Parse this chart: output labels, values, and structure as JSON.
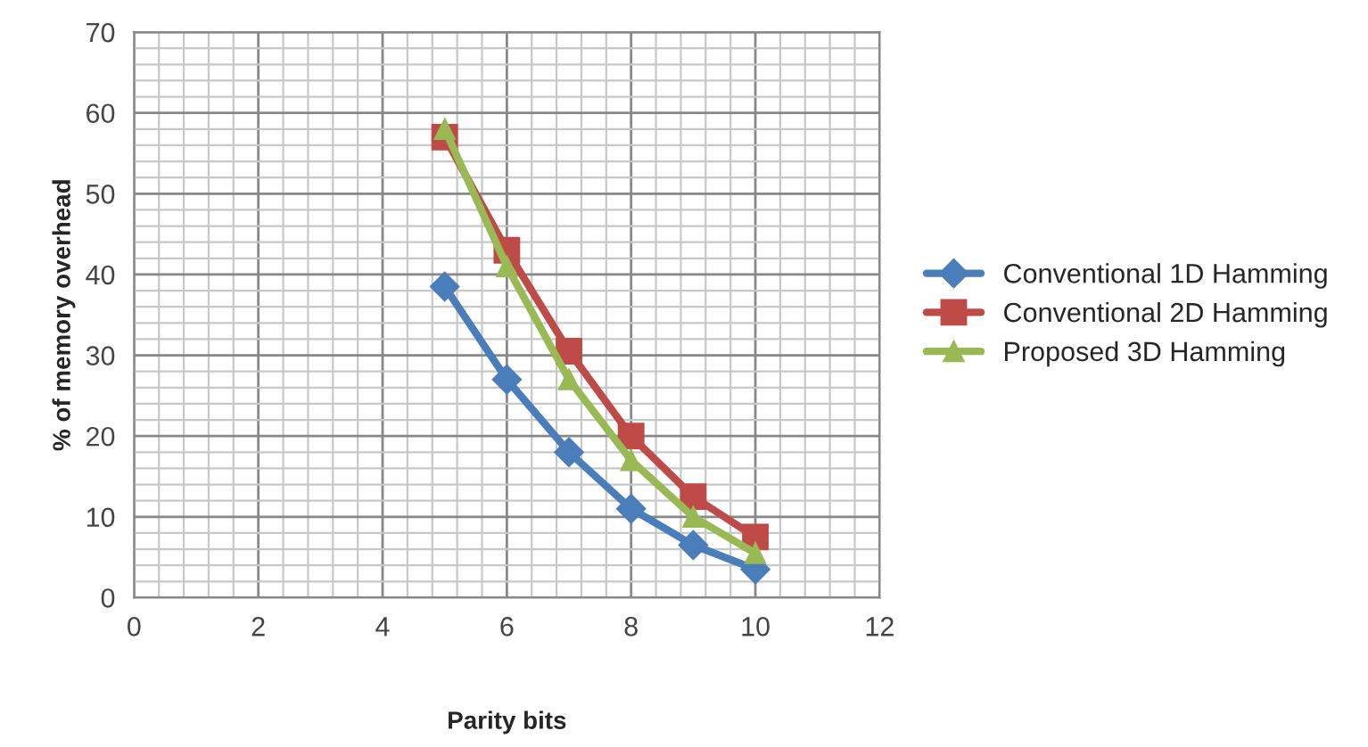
{
  "chart_data": {
    "type": "line",
    "xlabel": "Parity bits",
    "ylabel": "% of memory overhead",
    "x": [
      5,
      6,
      7,
      8,
      9,
      10
    ],
    "series": [
      {
        "name": "Conventional 1D Hamming",
        "color": "#4a7ebb",
        "marker": "diamond",
        "values": [
          38.5,
          27,
          18,
          11,
          6.5,
          3.5
        ]
      },
      {
        "name": "Conventional 2D Hamming",
        "color": "#be4b48",
        "marker": "square",
        "values": [
          57,
          43,
          30.5,
          20,
          12.5,
          7.5
        ]
      },
      {
        "name": "Proposed 3D Hamming",
        "color": "#98b954",
        "marker": "triangle",
        "values": [
          58,
          41,
          27,
          17,
          10,
          5.5
        ]
      }
    ],
    "xlim": [
      0,
      12
    ],
    "xticks": [
      0,
      2,
      4,
      6,
      8,
      10,
      12
    ],
    "ylim": [
      0,
      70
    ],
    "yticks": [
      0,
      10,
      20,
      30,
      40,
      50,
      60,
      70
    ],
    "grid": true,
    "legend": "right",
    "line_style": "solid"
  }
}
